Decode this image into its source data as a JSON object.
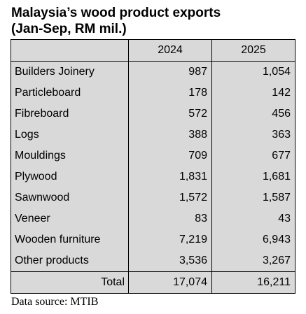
{
  "title_line1": "Malaysia’s wood product exports",
  "title_line2": "(Jan-Sep, RM mil.)",
  "source": "Data source: MTIB",
  "chart_data": {
    "type": "table",
    "columns": [
      "",
      "2024",
      "2025"
    ],
    "rows": [
      {
        "label": "Builders Joinery",
        "v2024": "987",
        "v2025": "1,054"
      },
      {
        "label": "Particleboard",
        "v2024": "178",
        "v2025": "142"
      },
      {
        "label": "Fibreboard",
        "v2024": "572",
        "v2025": "456"
      },
      {
        "label": "Logs",
        "v2024": "388",
        "v2025": "363"
      },
      {
        "label": "Mouldings",
        "v2024": "709",
        "v2025": "677"
      },
      {
        "label": "Plywood",
        "v2024": "1,831",
        "v2025": "1,681"
      },
      {
        "label": "Sawnwood",
        "v2024": "1,572",
        "v2025": "1,587"
      },
      {
        "label": "Veneer",
        "v2024": "83",
        "v2025": "43"
      },
      {
        "label": "Wooden furniture",
        "v2024": "7,219",
        "v2025": "6,943"
      },
      {
        "label": "Other products",
        "v2024": "3,536",
        "v2025": "3,267"
      }
    ],
    "total": {
      "label": "Total",
      "v2024": "17,074",
      "v2025": "16,211"
    }
  }
}
